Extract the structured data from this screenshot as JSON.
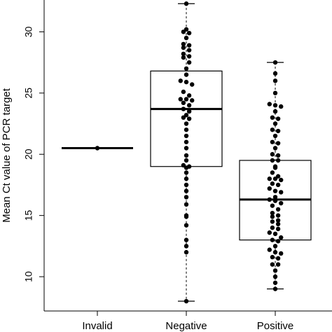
{
  "chart_data": {
    "type": "box+beeswarm",
    "ylabel": "Mean Ct value of PCR target",
    "ylim": [
      7.2,
      32.6
    ],
    "yticks": [
      10,
      15,
      20,
      25,
      30
    ],
    "categories": [
      "Invalid",
      "Negative",
      "Positive"
    ],
    "boxes": [
      {
        "category": "Invalid",
        "min": 20.5,
        "q1": 20.5,
        "median": 20.5,
        "q3": 20.5,
        "max": 20.5
      },
      {
        "category": "Negative",
        "min": 8.0,
        "q1": 19.0,
        "median": 23.7,
        "q3": 26.8,
        "max": 32.3
      },
      {
        "category": "Positive",
        "min": 9.0,
        "q1": 13.0,
        "median": 16.3,
        "q3": 19.5,
        "max": 27.5
      }
    ],
    "points": {
      "Invalid": [
        20.5
      ],
      "Negative": [
        32.3,
        30.2,
        30.0,
        29.9,
        29.5,
        29.0,
        28.9,
        28.7,
        28.5,
        28.2,
        28.0,
        27.9,
        27.5,
        27.0,
        26.5,
        26.0,
        25.9,
        25.7,
        25.1,
        24.8,
        24.5,
        24.5,
        24.4,
        24.2,
        24.0,
        23.7,
        23.5,
        23.2,
        23.0,
        22.9,
        22.5,
        22.0,
        21.5,
        21.0,
        20.5,
        19.9,
        19.5,
        19.1,
        19.0,
        18.9,
        18.5,
        18.0,
        17.5,
        17.0,
        16.5,
        15.9,
        15.0,
        14.9,
        14.2,
        13.0,
        12.5,
        12.0,
        8.0
      ],
      "Positive": [
        27.5,
        26.6,
        26.0,
        25.0,
        24.1,
        24.0,
        23.9,
        23.5,
        23.0,
        22.9,
        22.5,
        22.0,
        21.9,
        21.5,
        21.0,
        20.9,
        20.5,
        20.0,
        19.9,
        19.5,
        19.5,
        19.0,
        18.9,
        18.5,
        18.2,
        18.0,
        18.0,
        17.9,
        17.6,
        17.5,
        17.2,
        17.0,
        16.9,
        16.5,
        16.3,
        16.2,
        16.0,
        15.8,
        15.5,
        15.2,
        15.0,
        14.9,
        14.6,
        14.5,
        14.3,
        14.0,
        13.9,
        13.6,
        13.5,
        13.2,
        13.0,
        12.9,
        12.5,
        12.2,
        12.0,
        11.9,
        11.6,
        11.5,
        11.0,
        11.0,
        10.5,
        10.0,
        9.5,
        9.0
      ]
    }
  }
}
